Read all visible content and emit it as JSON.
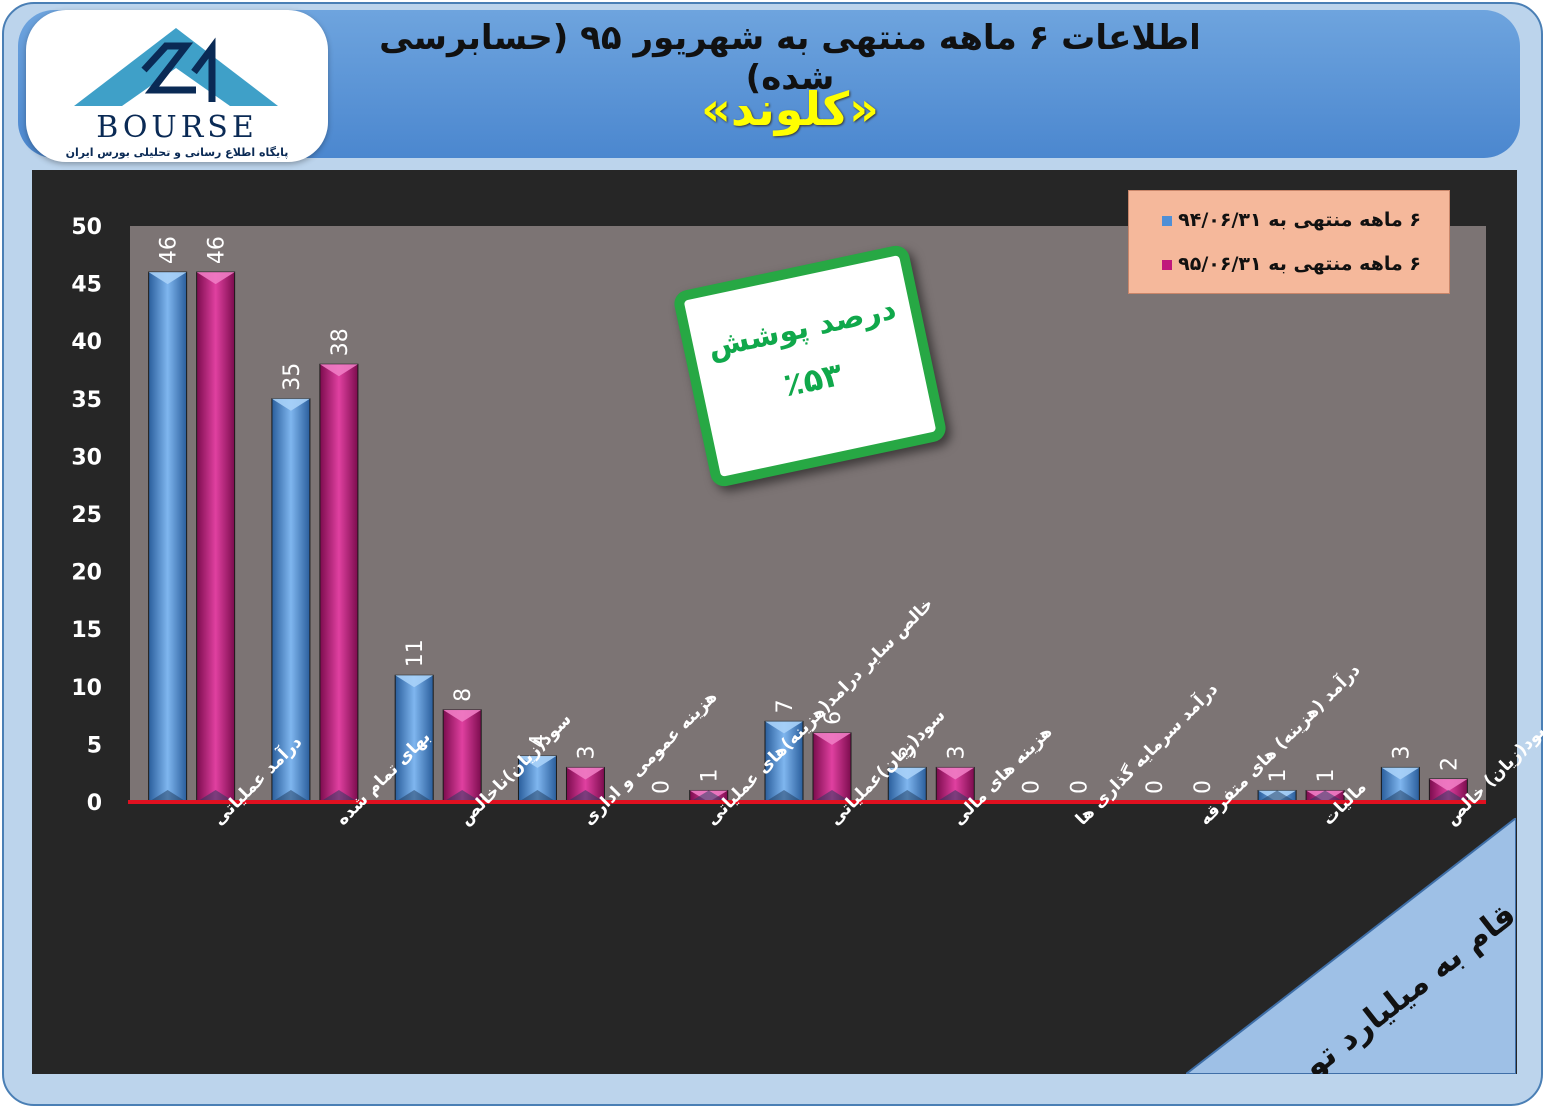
{
  "header": {
    "title": "اطلاعات ۶ ماهه منتهی به شهریور ۹۵ (حسابرسی شده)",
    "company": "«کلوند»"
  },
  "logo": {
    "name": "BOURSE",
    "tagline": "پایگاه اطلاع رسانی و تحلیلی بورس ایران"
  },
  "callout": {
    "label": "درصد پوشش",
    "value": "٪۵۳"
  },
  "legend": {
    "series1": "۶ ماهه منتهی به ۹۴/۰۶/۳۱",
    "series2": "۶ ماهه منتهی به ۹۵/۰۶/۳۱"
  },
  "units_note": "ارقام به میلیارد تومان",
  "colors": {
    "series1": "#4f8fd6",
    "series2": "#c0187c",
    "baseline": "#e01020",
    "plot_bg": "#7c7474",
    "legend_bg": "#f5b89b",
    "callout_border": "#27a844"
  },
  "chart_data": {
    "type": "bar",
    "categories": [
      "درآمد عملیاتی",
      "بهای تمام شده",
      "سود(زیان)ناخالص",
      "هزینه عمومی و اداری",
      "خالص سایر درامد(هزینه)های عملیاتی",
      "سود(زیان)عملیاتی",
      "هزینه های مالی",
      "درآمد سرمایه گذاری ها",
      "درآمد (هزینه) های متفرقه",
      "مالیات",
      "سود(زیان) خالص"
    ],
    "series": [
      {
        "name": "۶ ماهه منتهی به ۹۴/۰۶/۳۱",
        "values": [
          46,
          35,
          11,
          4,
          0,
          7,
          3,
          0,
          0,
          1,
          3
        ]
      },
      {
        "name": "۶ ماهه منتهی به ۹۵/۰۶/۳۱",
        "values": [
          46,
          38,
          8,
          3,
          1,
          6,
          3,
          0,
          0,
          1,
          2
        ]
      }
    ],
    "yticks": [
      0,
      5,
      10,
      15,
      20,
      25,
      30,
      35,
      40,
      45,
      50
    ],
    "ylim": [
      0,
      50
    ],
    "legend_position": "top-right",
    "grid": false
  }
}
